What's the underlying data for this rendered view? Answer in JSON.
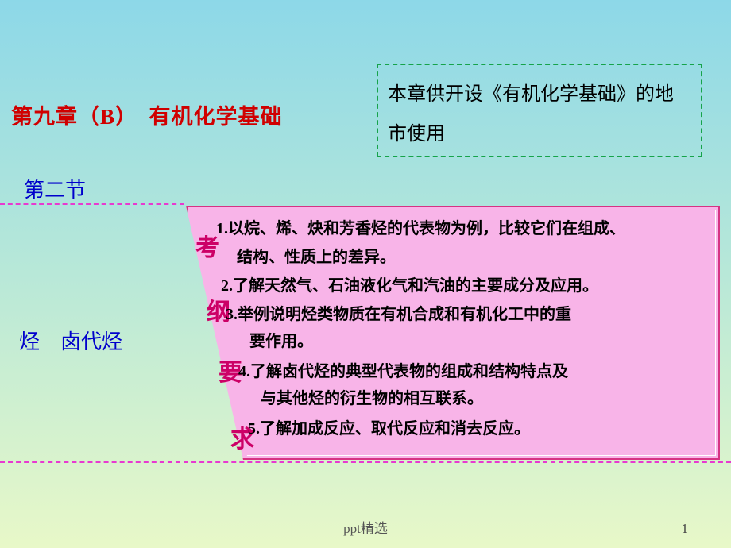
{
  "chapter": {
    "label": "第九章（B）　有机化学基础"
  },
  "note": {
    "text": "本章供开设《有机化学基础》的地市使用"
  },
  "section": {
    "label": "第二节"
  },
  "topic": {
    "label": "烃　卤代烃"
  },
  "tab": {
    "c1": "考",
    "c2": "纲",
    "c3": "要",
    "c4": "求"
  },
  "items": {
    "i1": "1.以烷、烯、炔和芳香烃的代表物为例，比较它们在组成、",
    "i1b": "结构、性质上的差异。",
    "i2": "2.了解天然气、石油液化气和汽油的主要成分及应用。",
    "i3": "3.举例说明烃类物质在有机合成和有机化工中的重",
    "i3b": "要作用。",
    "i4": "4.了解卤代烃的典型代表物的组成和结构特点及",
    "i4b": "与其他烃的衍生物的相互联系。",
    "i5": "5.了解加成反应、取代反应和消去反应。"
  },
  "footer": {
    "text": "ppt精选",
    "page": "1"
  },
  "colors": {
    "bg_top": "#8DD8E8",
    "bg_mid": "#B8E8D8",
    "bg_bottom": "#E8F8C8",
    "title_red": "#D00000",
    "blue_text": "#0000CC",
    "dashed_green": "#16A34A",
    "dashed_pink": "#E839D0",
    "panel_fill": "#F8B4E8",
    "panel_border": "#D63384",
    "tab_text": "#CC0066",
    "body_text": "#000000"
  }
}
